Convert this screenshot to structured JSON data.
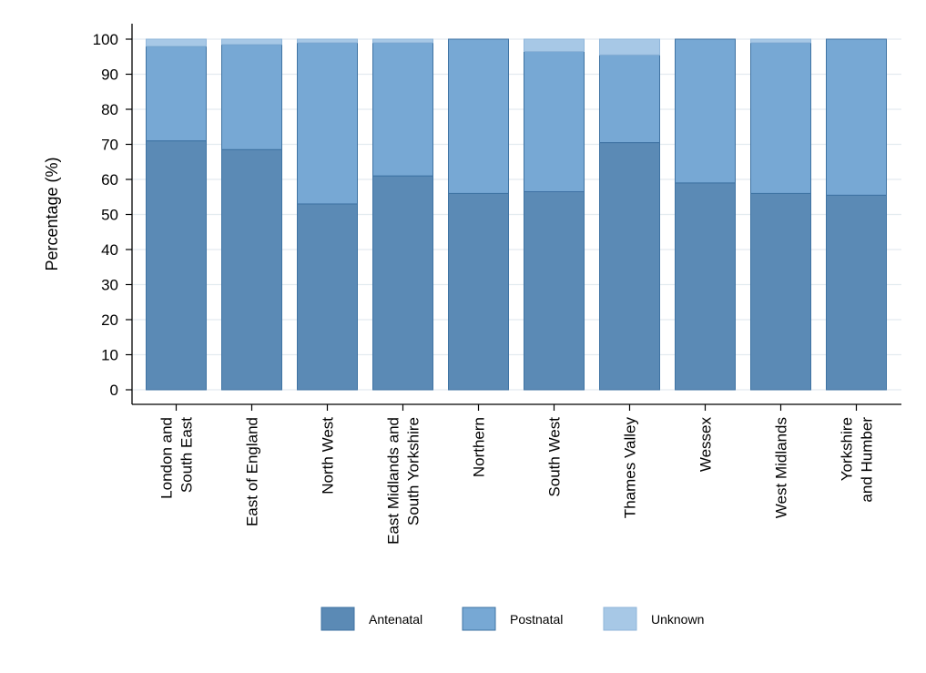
{
  "chart_data": {
    "type": "bar",
    "stacked": true,
    "title": "",
    "xlabel": "",
    "ylabel": "Percentage (%)",
    "ylim": [
      0,
      100
    ],
    "yticks": [
      0,
      10,
      20,
      30,
      40,
      50,
      60,
      70,
      80,
      90,
      100
    ],
    "grid": true,
    "legend_position": "bottom",
    "categories": [
      [
        "London and",
        "South East"
      ],
      [
        "East of England"
      ],
      [
        "North West"
      ],
      [
        "East Midlands and",
        "South Yorkshire"
      ],
      [
        "Northern"
      ],
      [
        "South West"
      ],
      [
        "Thames Valley"
      ],
      [
        "Wessex"
      ],
      [
        "West Midlands"
      ],
      [
        "Yorkshire",
        "and Humber"
      ]
    ],
    "series": [
      {
        "name": "Antenatal",
        "color": "#5b8ab5",
        "values": [
          71,
          68.5,
          53,
          61,
          56,
          56.5,
          70.5,
          59,
          56,
          55.5
        ]
      },
      {
        "name": "Postnatal",
        "color": "#77a8d4",
        "values": [
          27,
          30,
          46,
          38,
          44,
          40,
          25,
          41,
          43,
          44.5
        ]
      },
      {
        "name": "Unknown",
        "color": "#a7c8e6",
        "values": [
          2,
          1.5,
          1,
          1,
          0,
          3.5,
          4.5,
          0,
          1,
          0
        ]
      }
    ]
  }
}
